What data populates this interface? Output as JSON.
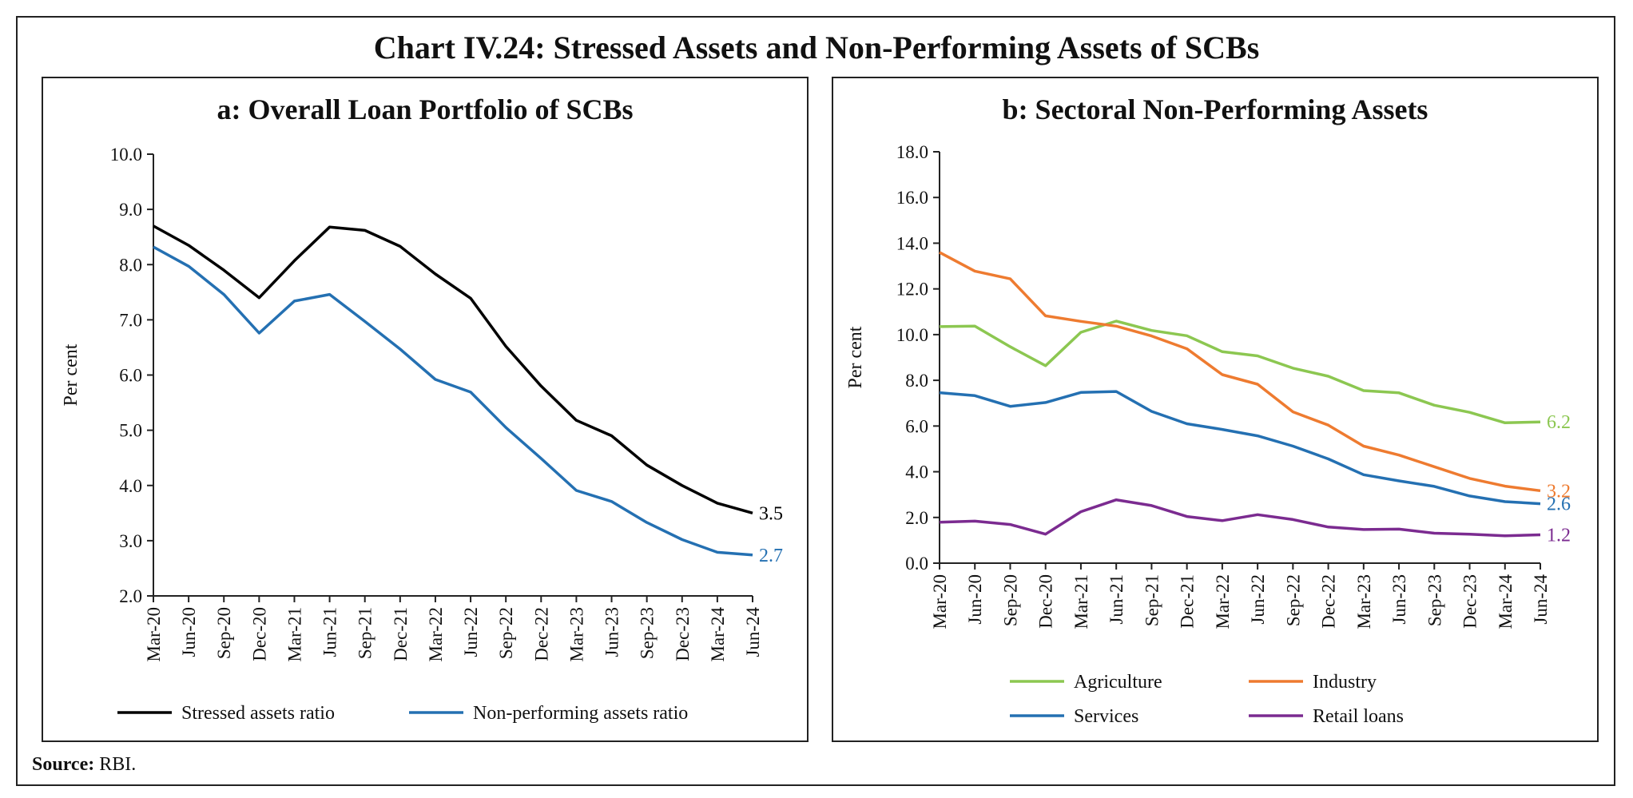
{
  "main_title": "Chart IV.24: Stressed Assets and Non-Performing Assets of SCBs",
  "source_label": "Source:",
  "source_text": "RBI.",
  "chart_data": [
    {
      "type": "line",
      "title": "a: Overall Loan Portfolio of SCBs",
      "ylabel": "Per cent",
      "xlabel": "",
      "ylim": [
        2.0,
        10.0
      ],
      "yticks": [
        "2.0",
        "3.0",
        "4.0",
        "5.0",
        "6.0",
        "7.0",
        "8.0",
        "9.0",
        "10.0"
      ],
      "categories": [
        "Mar-20",
        "Jun-20",
        "Sep-20",
        "Dec-20",
        "Mar-21",
        "Jun-21",
        "Sep-21",
        "Dec-21",
        "Mar-22",
        "Jun-22",
        "Sep-22",
        "Dec-22",
        "Mar-23",
        "Jun-23",
        "Sep-23",
        "Dec-23",
        "Mar-24",
        "Jun-24"
      ],
      "legend_position": "bottom",
      "grid": false,
      "series": [
        {
          "name": "Stressed assets ratio",
          "color": "#000000",
          "values": [
            8.7,
            8.35,
            7.9,
            7.4,
            8.07,
            8.68,
            8.62,
            8.33,
            7.83,
            7.39,
            6.52,
            5.8,
            5.18,
            4.9,
            4.37,
            4.0,
            3.68,
            3.5
          ],
          "end_label": "3.5"
        },
        {
          "name": "Non-performing assets ratio",
          "color": "#2470b2",
          "values": [
            8.32,
            7.97,
            7.46,
            6.76,
            7.34,
            7.46,
            6.97,
            6.47,
            5.92,
            5.69,
            5.05,
            4.49,
            3.91,
            3.71,
            3.33,
            3.02,
            2.79,
            2.74
          ],
          "end_label": "2.7"
        }
      ]
    },
    {
      "type": "line",
      "title": "b: Sectoral Non-Performing Assets",
      "ylabel": "Per cent",
      "xlabel": "",
      "ylim": [
        0.0,
        18.0
      ],
      "yticks": [
        "0.0",
        "2.0",
        "4.0",
        "6.0",
        "8.0",
        "10.0",
        "12.0",
        "14.0",
        "16.0",
        "18.0"
      ],
      "categories": [
        "Mar-20",
        "Jun-20",
        "Sep-20",
        "Dec-20",
        "Mar-21",
        "Jun-21",
        "Sep-21",
        "Dec-21",
        "Mar-22",
        "Jun-22",
        "Sep-22",
        "Dec-22",
        "Mar-23",
        "Jun-23",
        "Sep-23",
        "Dec-23",
        "Mar-24",
        "Jun-24"
      ],
      "legend_position": "bottom",
      "grid": false,
      "series": [
        {
          "name": "Agriculture",
          "color": "#8cc751",
          "values": [
            10.35,
            10.37,
            9.47,
            8.64,
            10.1,
            10.59,
            10.18,
            9.95,
            9.25,
            9.07,
            8.53,
            8.18,
            7.55,
            7.45,
            6.91,
            6.6,
            6.14,
            6.18
          ],
          "end_label": "6.2"
        },
        {
          "name": "Industry",
          "color": "#ee7b30",
          "values": [
            13.6,
            12.78,
            12.44,
            10.82,
            10.58,
            10.37,
            9.94,
            9.38,
            8.25,
            7.83,
            6.62,
            6.04,
            5.12,
            4.73,
            4.22,
            3.71,
            3.37,
            3.17
          ],
          "end_label": "3.2"
        },
        {
          "name": "Services",
          "color": "#2470b2",
          "values": [
            7.46,
            7.33,
            6.86,
            7.03,
            7.47,
            7.51,
            6.64,
            6.1,
            5.85,
            5.57,
            5.12,
            4.56,
            3.87,
            3.6,
            3.36,
            2.94,
            2.69,
            2.6
          ],
          "end_label": "2.6"
        },
        {
          "name": "Retail loans",
          "color": "#7b2b90",
          "values": [
            1.79,
            1.84,
            1.69,
            1.27,
            2.25,
            2.77,
            2.52,
            2.04,
            1.86,
            2.12,
            1.91,
            1.58,
            1.47,
            1.49,
            1.31,
            1.27,
            1.2,
            1.24
          ],
          "end_label": "1.2"
        }
      ]
    }
  ]
}
